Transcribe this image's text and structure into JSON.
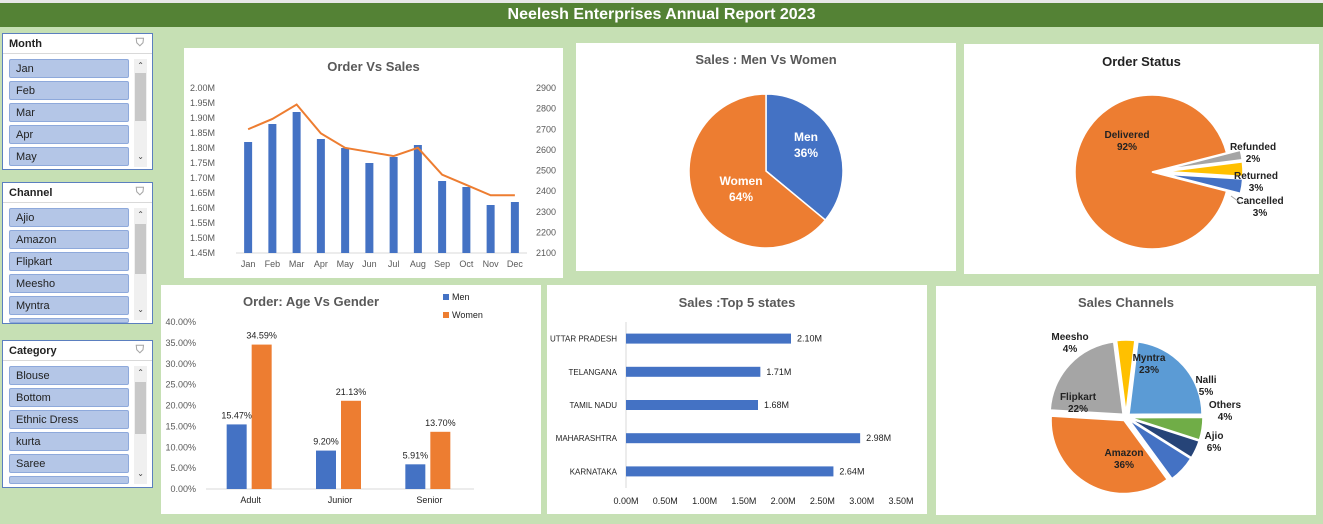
{
  "title": "Neelesh Enterprises Annual Report 2023",
  "slicers": {
    "month": {
      "header": "Month",
      "items": [
        "Jan",
        "Feb",
        "Mar",
        "Apr",
        "May"
      ]
    },
    "channel": {
      "header": "Channel",
      "items": [
        "Ajio",
        "Amazon",
        "Flipkart",
        "Meesho",
        "Myntra"
      ]
    },
    "category": {
      "header": "Category",
      "items": [
        "Blouse",
        "Bottom",
        "Ethnic Dress",
        "kurta",
        "Saree"
      ]
    }
  },
  "colors": {
    "blue": "#4472c4",
    "orange": "#ed7d31",
    "gray": "#a5a5a5",
    "yellow": "#ffc000",
    "lightblue": "#5b9bd5",
    "green": "#70ad47",
    "navy": "#264478"
  },
  "chart_data": [
    {
      "id": "order_vs_sales",
      "type": "bar",
      "title": "Order Vs Sales",
      "categories": [
        "Jan",
        "Feb",
        "Mar",
        "Apr",
        "May",
        "Jun",
        "Jul",
        "Aug",
        "Sep",
        "Oct",
        "Nov",
        "Dec"
      ],
      "series": [
        {
          "values": [
            1.82,
            1.88,
            1.92,
            1.83,
            1.8,
            1.75,
            1.77,
            1.81,
            1.69,
            1.67,
            1.61,
            1.62
          ],
          "axis": "left",
          "kind": "bar"
        },
        {
          "values": [
            2700,
            2750,
            2820,
            2680,
            2610,
            2590,
            2570,
            2610,
            2480,
            2430,
            2380,
            2380
          ],
          "axis": "right",
          "kind": "line"
        }
      ],
      "ylim": [
        1.45,
        2.0
      ],
      "yticks": [
        "2.00M",
        "1.95M",
        "1.90M",
        "1.85M",
        "1.80M",
        "1.75M",
        "1.70M",
        "1.65M",
        "1.60M",
        "1.55M",
        "1.50M",
        "1.45M"
      ],
      "y2lim": [
        2100,
        2900
      ],
      "y2ticks": [
        "2900",
        "2800",
        "2700",
        "2600",
        "2500",
        "2400",
        "2300",
        "2200",
        "2100"
      ]
    },
    {
      "id": "men_vs_women",
      "type": "pie",
      "title": "Sales : Men Vs Women",
      "slices": [
        {
          "label": "Men",
          "value": 36,
          "text": "36%"
        },
        {
          "label": "Women",
          "value": 64,
          "text": "64%"
        }
      ]
    },
    {
      "id": "order_status",
      "type": "pie",
      "title": "Order Status",
      "slices": [
        {
          "label": "Delivered",
          "value": 92,
          "text": "92%"
        },
        {
          "label": "Refunded",
          "value": 2,
          "text": "2%"
        },
        {
          "label": "Returned",
          "value": 3,
          "text": "3%"
        },
        {
          "label": "Cancelled",
          "value": 3,
          "text": "3%"
        }
      ]
    },
    {
      "id": "age_vs_gender",
      "type": "bar",
      "title": "Order: Age Vs Gender",
      "categories": [
        "Adult",
        "Junior",
        "Senior"
      ],
      "series": [
        {
          "name": "Men",
          "values": [
            15.47,
            9.2,
            5.91
          ],
          "labels": [
            "15.47%",
            "9.20%",
            "5.91%"
          ]
        },
        {
          "name": "Women",
          "values": [
            34.59,
            21.13,
            13.7
          ],
          "labels": [
            "34.59%",
            "21.13%",
            "13.70%"
          ]
        }
      ],
      "ylim": [
        0,
        40
      ],
      "yticks": [
        "40.00%",
        "35.00%",
        "30.00%",
        "25.00%",
        "20.00%",
        "15.00%",
        "10.00%",
        "5.00%",
        "0.00%"
      ]
    },
    {
      "id": "top5_states",
      "type": "bar",
      "title": "Sales :Top 5 states",
      "categories": [
        "UTTAR PRADESH",
        "TELANGANA",
        "TAMIL NADU",
        "MAHARASHTRA",
        "KARNATAKA"
      ],
      "values": [
        2.1,
        1.71,
        1.68,
        2.98,
        2.64
      ],
      "labels": [
        "2.10M",
        "1.71M",
        "1.68M",
        "2.98M",
        "2.64M"
      ],
      "xlim": [
        0,
        3.5
      ],
      "xticks": [
        "0.00M",
        "0.50M",
        "1.00M",
        "1.50M",
        "2.00M",
        "2.50M",
        "3.00M",
        "3.50M"
      ]
    },
    {
      "id": "sales_channels",
      "type": "pie",
      "title": "Sales Channels",
      "slices": [
        {
          "label": "Myntra",
          "value": 23,
          "text": "23%"
        },
        {
          "label": "Nalli",
          "value": 5,
          "text": "5%"
        },
        {
          "label": "Others",
          "value": 4,
          "text": "4%"
        },
        {
          "label": "Ajio",
          "value": 6,
          "text": "6%"
        },
        {
          "label": "Amazon",
          "value": 36,
          "text": "36%"
        },
        {
          "label": "Flipkart",
          "value": 22,
          "text": "22%"
        },
        {
          "label": "Meesho",
          "value": 4,
          "text": "4%"
        }
      ]
    }
  ]
}
